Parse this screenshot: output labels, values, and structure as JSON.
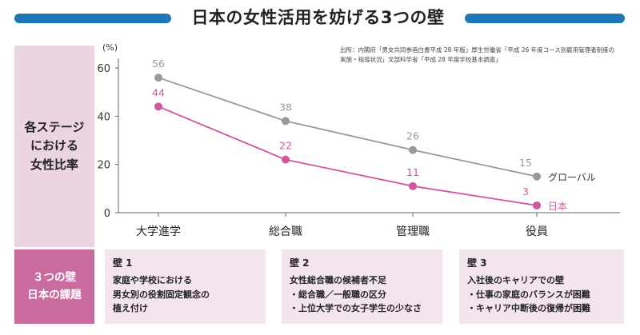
{
  "header": {
    "title": "日本の女性活用を妨げる3つの壁"
  },
  "side": {
    "top_label": "各ステージ\nにおける\n女性比率",
    "bottom_label": "３つの壁\n日本の課題"
  },
  "source": {
    "line1": "出所：内閣府「男女共同参画白書平成 28 年版」厚生労働省「平成 26 年度コース別雇用管理者制度の",
    "line2": "実施・指導状況」文部科学省「平成 28 年度学校基本調査」"
  },
  "colors": {
    "global": "#999999",
    "japan": "#d0579b",
    "title_bar": "#1f77b8",
    "side_top": "#ecd5e3",
    "side_bottom": "#c96b9f",
    "wall_bg": "#f4e4ee"
  },
  "chart_data": {
    "type": "line",
    "categories": [
      "大学進学",
      "総合職",
      "管理職",
      "役員"
    ],
    "series": [
      {
        "name": "グローバル",
        "values": [
          56,
          38,
          26,
          15
        ]
      },
      {
        "name": "日本",
        "values": [
          44,
          22,
          11,
          3
        ]
      }
    ],
    "ylabel": "(%)",
    "ylim": [
      0,
      60
    ],
    "yticks": [
      "0",
      "20",
      "40",
      "60"
    ],
    "grid": false,
    "legend": "end-of-line labels"
  },
  "walls": [
    {
      "title": "壁 1",
      "lines": [
        "家庭や学校における",
        "男女別の役割固定観念の",
        "植え付け"
      ]
    },
    {
      "title": "壁 2",
      "lines": [
        "女性総合職の候補者不足",
        "・総合職／一般職の区分",
        "・上位大学での女子学生の少なさ"
      ]
    },
    {
      "title": "壁 3",
      "lines": [
        "入社後のキャリアでの壁",
        "・仕事の家庭のバランスが困難",
        "・キャリア中断後の復帰が困難"
      ]
    }
  ]
}
